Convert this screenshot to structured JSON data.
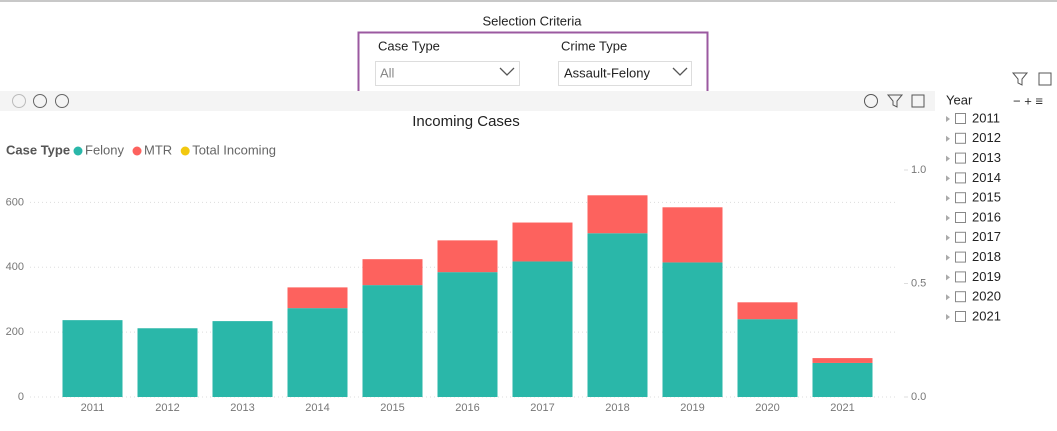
{
  "selection": {
    "title": "Selection Criteria",
    "slicers": [
      {
        "label": "Case Type",
        "value": "All"
      },
      {
        "label": "Crime Type",
        "value": "Assault-Felony"
      }
    ]
  },
  "year_filter": {
    "title": "Year",
    "items": [
      "2011",
      "2012",
      "2013",
      "2014",
      "2015",
      "2016",
      "2017",
      "2018",
      "2019",
      "2020",
      "2021"
    ]
  },
  "chart_data": {
    "type": "bar",
    "stacked": true,
    "title": "Incoming Cases",
    "legend_title": "Case Type",
    "categories": [
      "2011",
      "2012",
      "2013",
      "2014",
      "2015",
      "2016",
      "2017",
      "2018",
      "2019",
      "2020",
      "2021"
    ],
    "series": [
      {
        "name": "Felony",
        "color": "#2ab7a9",
        "values": [
          237,
          212,
          234,
          274,
          345,
          385,
          418,
          505,
          415,
          240,
          105
        ]
      },
      {
        "name": "MTR",
        "color": "#fd625e",
        "values": [
          0,
          0,
          0,
          64,
          80,
          98,
          120,
          117,
          170,
          52,
          15
        ]
      },
      {
        "name": "Total Incoming",
        "color": "#f2c80f",
        "axis": "y2",
        "values": [
          null,
          null,
          null,
          null,
          null,
          null,
          null,
          null,
          null,
          null,
          null
        ]
      }
    ],
    "ylim": [
      0,
      700
    ],
    "yticks": [
      0,
      200,
      400,
      600
    ],
    "y2lim": [
      0,
      1
    ],
    "y2ticks": [
      {
        "value": 0,
        "label": "0.0"
      },
      0.5,
      {
        "value": 1,
        "label": "1.0"
      }
    ],
    "grid": true
  }
}
